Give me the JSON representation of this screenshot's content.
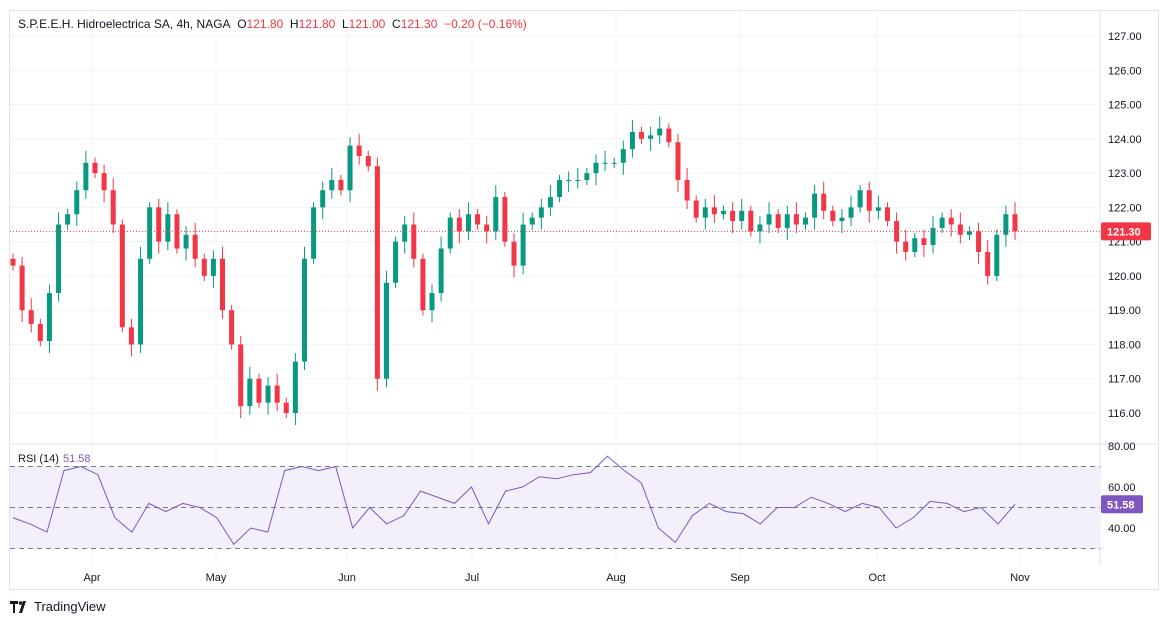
{
  "legend": {
    "symbol": "S.P.E.E.H. Hidroelectrica SA, 4h, NAGA",
    "open_label": "O",
    "open": "121.80",
    "high_label": "H",
    "high": "121.80",
    "low_label": "L",
    "low": "121.00",
    "close_label": "C",
    "close": "121.30",
    "change": "−0.20 (−0.16%)"
  },
  "rsi_legend": {
    "name": "RSI (14)",
    "value": "51.58"
  },
  "brand": "TradingView",
  "colors": {
    "up": "#089981",
    "down": "#f23645",
    "rsi": "#7e57c2",
    "rsi_band": "#f3effb"
  },
  "chart_data": [
    {
      "type": "candlestick",
      "ylim": [
        115.8,
        127.2
      ],
      "y_ticks": [
        "127.00",
        "126.00",
        "125.00",
        "124.00",
        "123.00",
        "122.00",
        "121.00",
        "120.00",
        "119.00",
        "118.00",
        "117.00",
        "116.00"
      ],
      "x_ticks": [
        "Apr",
        "May",
        "Jun",
        "Jul",
        "Aug",
        "Sep",
        "Oct",
        "Nov"
      ],
      "last_price": "121.30",
      "grid": true,
      "closes": [
        120.3,
        119.0,
        118.6,
        118.1,
        119.5,
        121.5,
        121.8,
        122.5,
        123.3,
        123.0,
        122.5,
        121.5,
        118.5,
        118.0,
        120.5,
        122.0,
        121.0,
        121.8,
        120.8,
        121.2,
        120.5,
        120.0,
        120.5,
        119.0,
        118.0,
        116.2,
        117.0,
        116.3,
        116.8,
        116.3,
        116.0,
        117.5,
        120.5,
        122.0,
        122.5,
        122.8,
        122.5,
        123.8,
        123.5,
        123.2,
        117.0,
        119.8,
        121.0,
        121.5,
        120.5,
        119.0,
        119.5,
        120.8,
        121.7,
        121.3,
        121.8,
        121.5,
        121.3,
        122.3,
        121.0,
        120.3,
        121.5,
        121.7,
        122.0,
        122.3,
        122.8,
        122.8,
        122.8,
        123.0,
        123.3,
        123.3,
        123.3,
        123.7,
        124.2,
        124.0,
        124.1,
        124.3,
        123.9,
        122.8,
        122.2,
        121.7,
        122.0,
        121.8,
        121.9,
        121.6,
        121.9,
        121.3,
        121.5,
        121.8,
        121.4,
        121.8,
        121.5,
        121.7,
        122.4,
        121.9,
        121.6,
        121.7,
        122.0,
        122.5,
        121.9,
        122.0,
        121.6,
        121.0,
        120.7,
        121.1,
        120.9,
        121.4,
        121.7,
        121.5,
        121.2,
        121.3,
        120.7,
        120.0,
        121.2,
        121.8,
        121.3
      ]
    },
    {
      "type": "line",
      "name": "RSI (14)",
      "ylim": [
        25,
        82
      ],
      "y_ticks": [
        "80.00",
        "60.00",
        "40.00"
      ],
      "bands": [
        70,
        50,
        30
      ],
      "last_value": "51.58",
      "values": [
        45,
        42,
        38,
        68,
        70,
        66,
        45,
        38,
        52,
        48,
        52,
        50,
        45,
        32,
        40,
        38,
        68,
        70,
        68,
        70,
        40,
        50,
        42,
        46,
        58,
        55,
        52,
        60,
        42,
        58,
        60,
        65,
        64,
        66,
        67,
        75,
        68,
        62,
        40,
        33,
        46,
        52,
        48,
        47,
        42,
        50,
        50,
        55,
        52,
        48,
        52,
        50,
        40,
        45,
        53,
        52,
        48,
        50,
        42,
        51.58
      ]
    }
  ]
}
